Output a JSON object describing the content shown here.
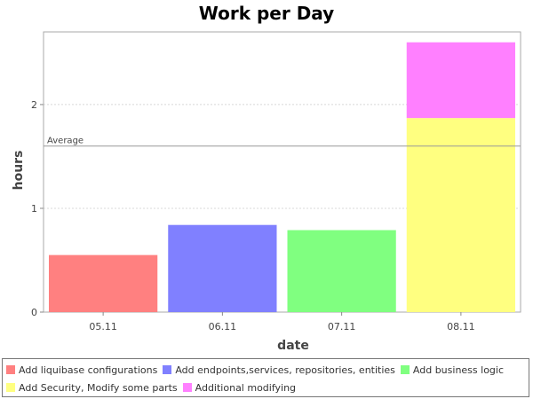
{
  "chart_data": {
    "type": "bar",
    "stacked": true,
    "title": "Work per Day",
    "xlabel": "date",
    "ylabel": "hours",
    "categories": [
      "05.11",
      "06.11",
      "07.11",
      "08.11"
    ],
    "ylim": [
      0,
      2.7
    ],
    "yticks": [
      "0",
      "1",
      "2"
    ],
    "grid": true,
    "legend_position": "bottom",
    "series": [
      {
        "name": "Add liquibase configurations",
        "color": "#ff8080",
        "values": [
          0.55,
          0,
          0,
          0
        ]
      },
      {
        "name": "Add endpoints,services, repositories, entities",
        "color": "#8080ff",
        "values": [
          0,
          0.84,
          0,
          0
        ]
      },
      {
        "name": "Add business logic",
        "color": "#80ff80",
        "values": [
          0,
          0,
          0.79,
          0
        ]
      },
      {
        "name": "Add Security, Modify some parts",
        "color": "#ffff80",
        "values": [
          0,
          0,
          0,
          1.87
        ]
      },
      {
        "name": "Additional modifying",
        "color": "#ff80ff",
        "values": [
          0,
          0,
          0,
          0.73
        ]
      }
    ],
    "average": {
      "label": "Average",
      "value": 1.6
    }
  }
}
